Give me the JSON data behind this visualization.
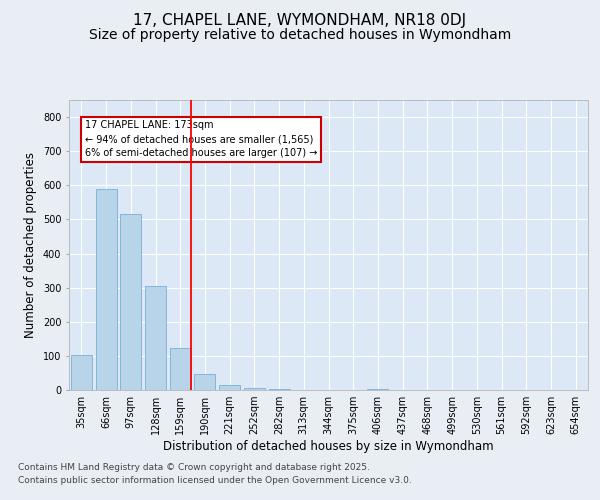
{
  "title_line1": "17, CHAPEL LANE, WYMONDHAM, NR18 0DJ",
  "title_line2": "Size of property relative to detached houses in Wymondham",
  "xlabel": "Distribution of detached houses by size in Wymondham",
  "ylabel": "Number of detached properties",
  "categories": [
    "35sqm",
    "66sqm",
    "97sqm",
    "128sqm",
    "159sqm",
    "190sqm",
    "221sqm",
    "252sqm",
    "282sqm",
    "313sqm",
    "344sqm",
    "375sqm",
    "406sqm",
    "437sqm",
    "468sqm",
    "499sqm",
    "530sqm",
    "561sqm",
    "592sqm",
    "623sqm",
    "654sqm"
  ],
  "values": [
    103,
    590,
    515,
    305,
    122,
    47,
    16,
    6,
    4,
    0,
    0,
    0,
    4,
    0,
    0,
    0,
    0,
    0,
    0,
    0,
    0
  ],
  "bar_color": "#b8d4e8",
  "bar_edge_color": "#7bafd4",
  "red_line_label": "17 CHAPEL LANE: 173sqm",
  "annotation_line1": "← 94% of detached houses are smaller (1,565)",
  "annotation_line2": "6% of semi-detached houses are larger (107) →",
  "property_size": 173,
  "ylim": [
    0,
    850
  ],
  "yticks": [
    0,
    100,
    200,
    300,
    400,
    500,
    600,
    700,
    800
  ],
  "background_color": "#e8eef4",
  "plot_bg_color": "#dce8f5",
  "grid_color": "#ffffff",
  "footer_line1": "Contains HM Land Registry data © Crown copyright and database right 2025.",
  "footer_line2": "Contains public sector information licensed under the Open Government Licence v3.0.",
  "annotation_box_color": "#cc0000",
  "title_fontsize": 11,
  "subtitle_fontsize": 10,
  "axis_label_fontsize": 8.5,
  "tick_fontsize": 7,
  "footer_fontsize": 6.5
}
